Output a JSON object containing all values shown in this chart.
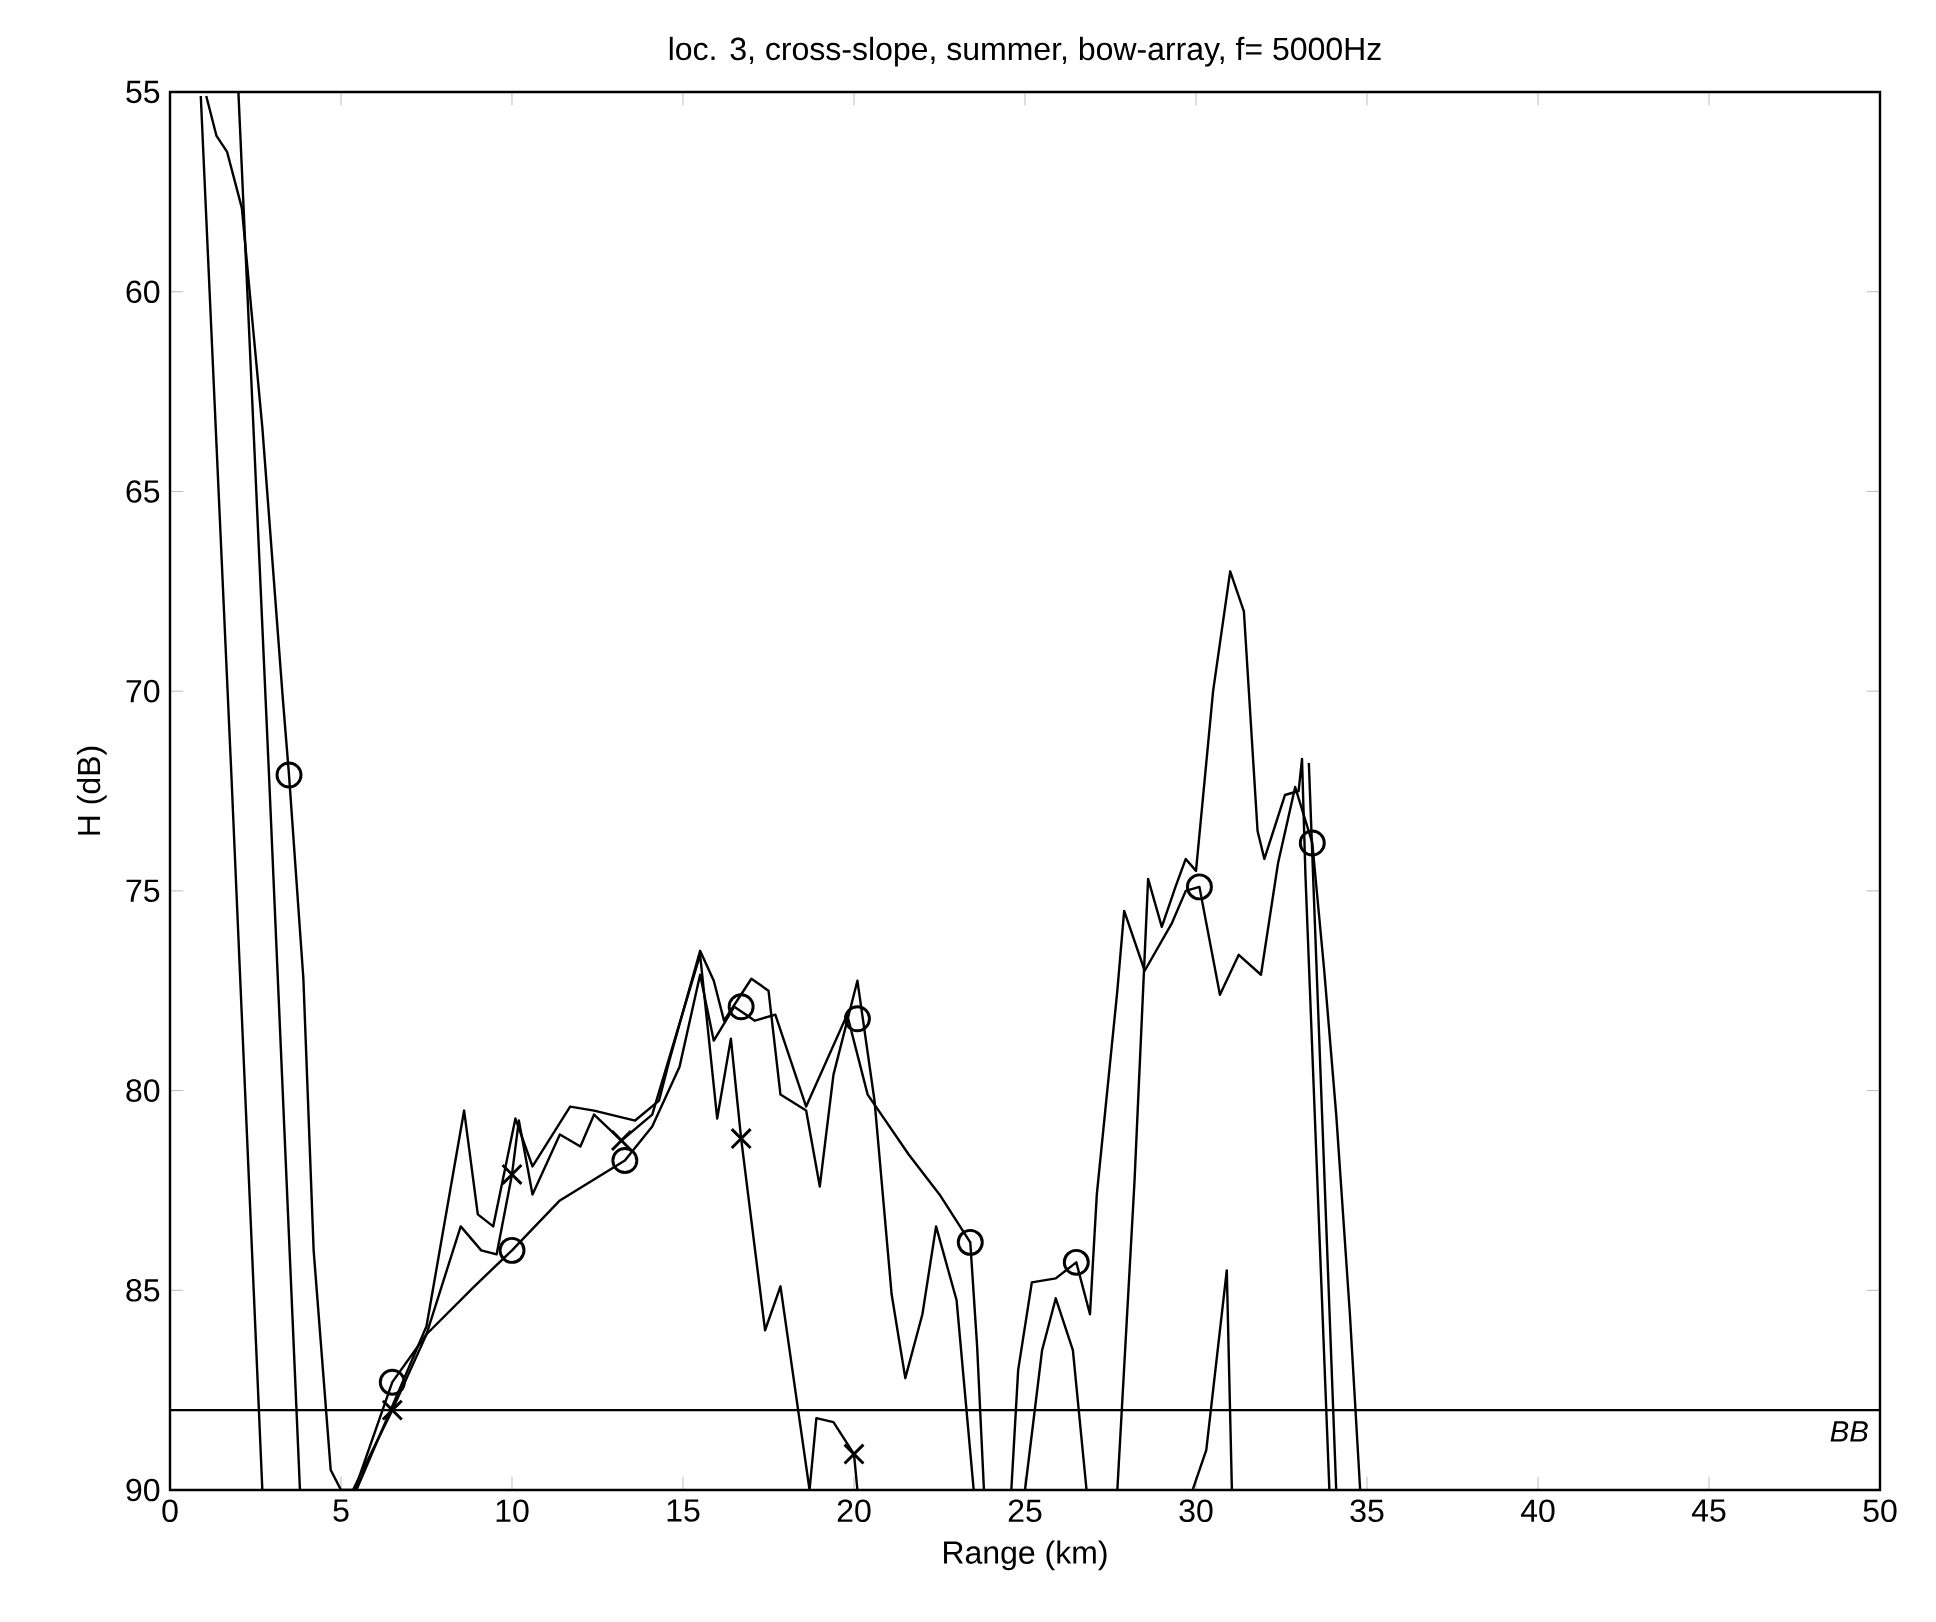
{
  "chart_data": {
    "type": "line",
    "title": "loc. 3, cross-slope, summer, bow-array, f= 5000Hz",
    "xlabel": "Range (km)",
    "ylabel": "H (dB)",
    "xlim": [
      0,
      50
    ],
    "ylim": [
      90,
      55
    ],
    "xticks": [
      0,
      5,
      10,
      15,
      20,
      25,
      30,
      35,
      40,
      45,
      50
    ],
    "yticks": [
      55,
      60,
      65,
      70,
      75,
      80,
      85,
      90
    ],
    "ref_lines": [
      {
        "axis": "y",
        "value": 88,
        "label": "BB",
        "color": "#000000"
      }
    ],
    "series": [
      {
        "color": "#000000",
        "marker": "none",
        "x": [
          1.06,
          1.36,
          1.67,
          2.1,
          2.7,
          3.3,
          3.48,
          3.9,
          4.2,
          4.7,
          5.0,
          5.4,
          6.5,
          7.5,
          8.9,
          10,
          11.4,
          13.3,
          14.1,
          14.9,
          15.5,
          15.9,
          16.5,
          17.1,
          17.7,
          18.6,
          19.8,
          20.4,
          21.6,
          22.5,
          23.4,
          23.6,
          23.8,
          24.2,
          24.6,
          24.8,
          25.2,
          25.9,
          26.5,
          26.9,
          27.1,
          27.7,
          27.9,
          28.5,
          29.3,
          29.7,
          30.1,
          30.7,
          31.25,
          31.9,
          32.4,
          32.9,
          33.4,
          33.75,
          34.1,
          34.5,
          34.8
        ],
        "values": [
          55.1,
          56.1,
          56.5,
          57.9,
          63.4,
          70.2,
          72.1,
          77.2,
          84.0,
          89.5,
          90,
          90,
          87.3,
          86.1,
          84.9,
          84.0,
          82.75,
          81.75,
          80.9,
          79.4,
          77.1,
          78.75,
          77.9,
          78.25,
          78.1,
          80.4,
          78.1,
          80.1,
          81.6,
          82.6,
          83.8,
          86.4,
          90,
          null,
          90,
          87.0,
          84.8,
          84.7,
          84.3,
          85.6,
          82.6,
          77.5,
          75.5,
          77.0,
          75.8,
          75.0,
          74.9,
          77.6,
          76.6,
          77.1,
          74.3,
          72.4,
          73.8,
          77.0,
          80.6,
          85.6,
          90
        ]
      },
      {
        "color": "#000000",
        "marker": "none",
        "x": [
          0.9,
          1.8,
          2.7,
          3.0,
          5.35,
          6.5,
          7.5,
          8.5,
          9.1,
          9.55,
          10,
          10.2,
          10.6,
          11.4,
          12.0,
          12.4,
          13.2,
          14.1,
          15.5,
          16.0,
          16.4,
          16.7,
          17.4,
          17.85,
          18.7,
          18.9,
          19.4,
          20.0,
          20.1,
          22.0,
          25.0,
          25.5,
          25.9,
          26.4,
          26.8,
          28.0,
          29.9,
          30.3,
          30.9,
          31.05,
          32.0,
          33.3,
          34.1
        ],
        "values": [
          55.1,
          72.2,
          90,
          null,
          90,
          88.0,
          86.1,
          83.4,
          84.0,
          84.1,
          82.1,
          80.75,
          82.6,
          81.1,
          81.4,
          80.6,
          81.25,
          80.6,
          76.6,
          80.7,
          78.7,
          81.2,
          86.0,
          84.9,
          90,
          88.2,
          88.3,
          89.1,
          90,
          null,
          90,
          86.5,
          85.2,
          86.5,
          90,
          null,
          90,
          89,
          84.5,
          90,
          null,
          71.8,
          90
        ]
      },
      {
        "color": "#000000",
        "marker": "none",
        "x": [
          2.0,
          2.9,
          3.8,
          4.5,
          5.45,
          7.5,
          8.6,
          9.0,
          9.45,
          10.1,
          10.6,
          11.7,
          12.4,
          13.6,
          14.3,
          14.6,
          15.5,
          15.9,
          16.2,
          17.0,
          17.5,
          17.85,
          18.6,
          19.0,
          19.4,
          20.1,
          20.6,
          21.1,
          21.5,
          22.0,
          22.4,
          23.0,
          23.5,
          25.0,
          27.7,
          28.2,
          28.6,
          29.0,
          29.4,
          29.7,
          30.0,
          30.5,
          31.0,
          31.4,
          31.8,
          32.0,
          32.6,
          33.0,
          33.1,
          33.2,
          33.9
        ],
        "values": [
          55,
          72.2,
          90,
          null,
          90,
          85.9,
          80.5,
          83.1,
          83.4,
          80.7,
          81.9,
          80.4,
          80.5,
          80.75,
          80.25,
          79.25,
          76.5,
          77.25,
          78.25,
          77.2,
          77.5,
          80.1,
          80.5,
          82.4,
          79.6,
          77.25,
          80.25,
          85.1,
          87.2,
          85.6,
          83.4,
          85.25,
          90,
          null,
          90,
          82.3,
          74.7,
          75.9,
          74.9,
          74.2,
          74.5,
          70,
          67,
          68,
          73.5,
          74.2,
          72.6,
          72.5,
          71.7,
          74.6,
          90
        ]
      },
      {
        "type": "scatter",
        "color": "#000000",
        "marker": "circle",
        "x": [
          3.48,
          6.5,
          10,
          13.3,
          16.7,
          20.1,
          23.4,
          26.5,
          30.1,
          33.4
        ],
        "values": [
          72.1,
          87.3,
          84.0,
          81.75,
          77.9,
          78.2,
          83.8,
          84.3,
          74.9,
          73.8
        ]
      },
      {
        "type": "scatter",
        "color": "#000000",
        "marker": "cross",
        "x": [
          6.5,
          10,
          13.2,
          16.7,
          20.0
        ],
        "values": [
          88.0,
          82.1,
          81.25,
          81.2,
          89.1
        ]
      }
    ]
  }
}
